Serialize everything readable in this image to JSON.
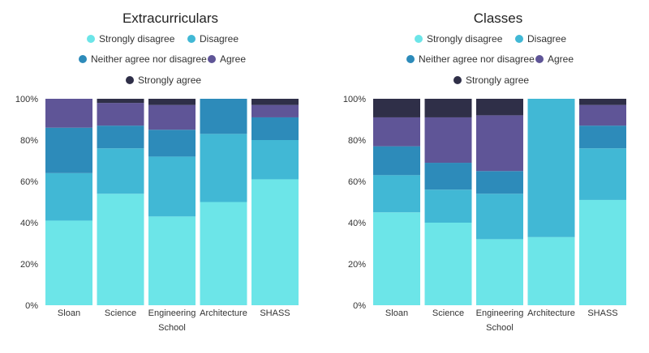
{
  "chart_data": [
    {
      "type": "bar",
      "stacked": true,
      "title": "Extracurriculars",
      "xlabel": "School",
      "ylabel": "",
      "ylim": [
        0,
        100
      ],
      "yticks": [
        "0%",
        "20%",
        "40%",
        "60%",
        "80%",
        "100%"
      ],
      "categories": [
        "Sloan",
        "Science",
        "Engineering",
        "Architecture",
        "SHASS"
      ],
      "series": [
        {
          "name": "Strongly disagree",
          "color": "#6ce5e8",
          "values": [
            41,
            54,
            43,
            50,
            61
          ]
        },
        {
          "name": "Disagree",
          "color": "#41b8d5",
          "values": [
            23,
            22,
            29,
            33,
            19
          ]
        },
        {
          "name": "Neither agree nor disagree",
          "color": "#2d8bba",
          "values": [
            22,
            11,
            13,
            17,
            11
          ]
        },
        {
          "name": "Agree",
          "color": "#5f5597",
          "values": [
            14,
            11,
            12,
            0,
            6
          ]
        },
        {
          "name": "Strongly agree",
          "color": "#2f2f48",
          "values": [
            0,
            2,
            3,
            0,
            3
          ]
        }
      ]
    },
    {
      "type": "bar",
      "stacked": true,
      "title": "Classes",
      "xlabel": "School",
      "ylabel": "",
      "ylim": [
        0,
        100
      ],
      "yticks": [
        "0%",
        "20%",
        "40%",
        "60%",
        "80%",
        "100%"
      ],
      "categories": [
        "Sloan",
        "Science",
        "Engineering",
        "Architecture",
        "SHASS"
      ],
      "series": [
        {
          "name": "Strongly disagree",
          "color": "#6ce5e8",
          "values": [
            45,
            40,
            32,
            33,
            51
          ]
        },
        {
          "name": "Disagree",
          "color": "#41b8d5",
          "values": [
            18,
            16,
            22,
            67,
            25
          ]
        },
        {
          "name": "Neither agree nor disagree",
          "color": "#2d8bba",
          "values": [
            14,
            13,
            11,
            0,
            11
          ]
        },
        {
          "name": "Agree",
          "color": "#5f5597",
          "values": [
            14,
            22,
            27,
            0,
            10
          ]
        },
        {
          "name": "Strongly agree",
          "color": "#2f2f48",
          "values": [
            9,
            9,
            8,
            0,
            3
          ]
        }
      ]
    }
  ]
}
